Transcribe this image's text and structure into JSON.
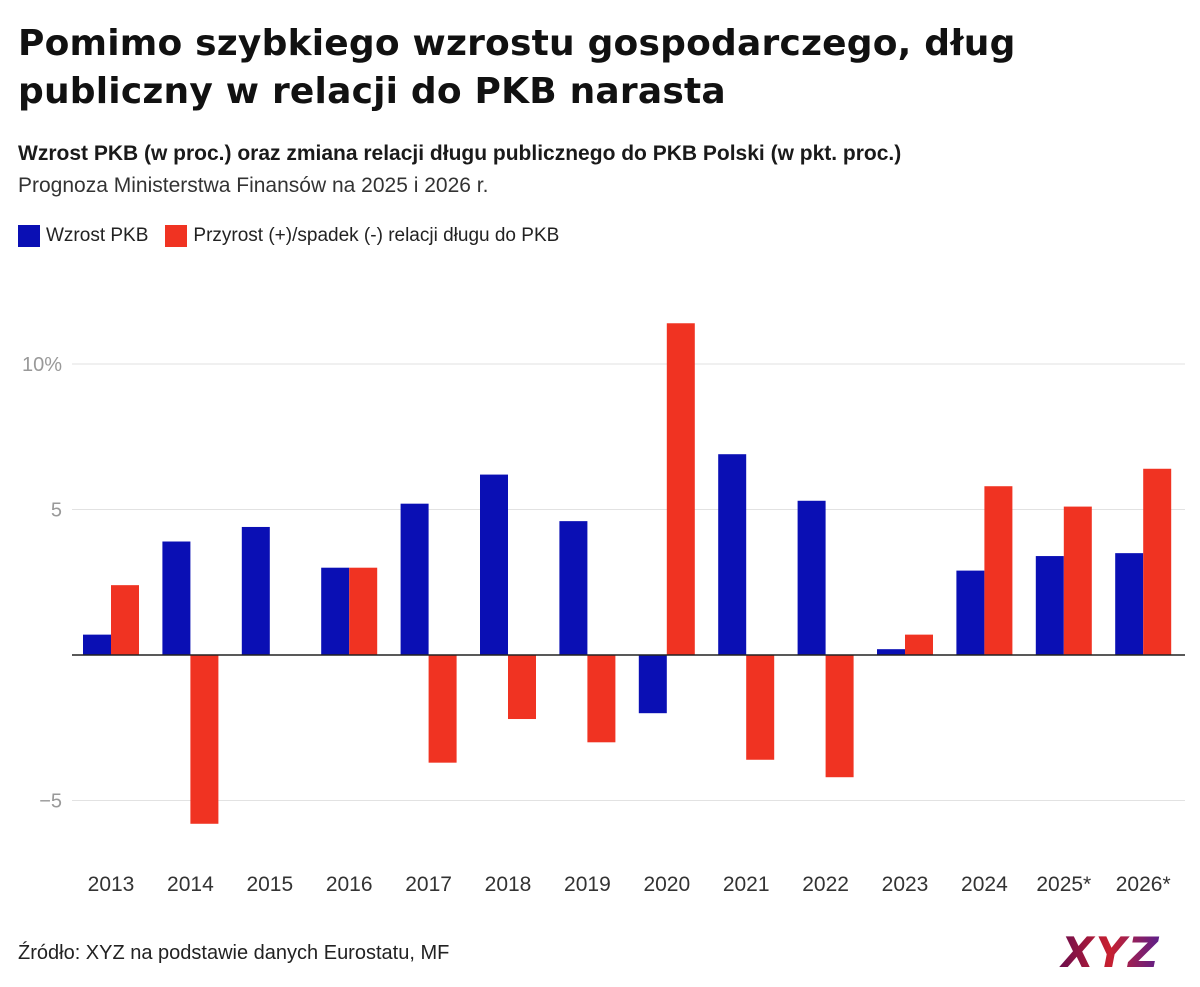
{
  "title": "Pomimo szybkiego wzrostu gospodarczego, dług publiczny w relacji do PKB narasta",
  "subtitle": "Wzrost PKB (w proc.) oraz zmiana relacji długu publicznego do PKB Polski (w pkt. proc.)",
  "subtitle2": "Prognoza Ministerstwa Finansów na 2025 i 2026 r.",
  "source": "Źródło: XYZ na podstawie danych Eurostatu, MF",
  "logo_text": "XYZ",
  "colors": {
    "gdp": "#0a0fb4",
    "debt": "#f03322",
    "grid": "#e2e2e2",
    "zero": "#222222",
    "tick": "#999999"
  },
  "chart_data": {
    "type": "bar",
    "categories": [
      "2013",
      "2014",
      "2015",
      "2016",
      "2017",
      "2018",
      "2019",
      "2020",
      "2021",
      "2022",
      "2023",
      "2024",
      "2025*",
      "2026*"
    ],
    "series": [
      {
        "name": "Wzrost PKB",
        "values": [
          0.7,
          3.9,
          4.4,
          3.0,
          5.2,
          6.2,
          4.6,
          -2.0,
          6.9,
          5.3,
          0.2,
          2.9,
          3.4,
          3.5
        ]
      },
      {
        "name": "Przyrost (+)/spadek (-) relacji długu do PKB",
        "values": [
          2.4,
          -5.8,
          0.0,
          3.0,
          -3.7,
          -2.2,
          -3.0,
          11.4,
          -3.6,
          -4.2,
          0.7,
          5.8,
          5.1,
          6.4
        ]
      }
    ],
    "yticks": [
      {
        "value": 10,
        "label": "10%"
      },
      {
        "value": 5,
        "label": "5"
      },
      {
        "value": -5,
        "label": "−5"
      }
    ],
    "ylim": [
      -6.8,
      12.5
    ],
    "grid": true,
    "legend_position": "top-left",
    "xlabel": "",
    "ylabel": ""
  }
}
